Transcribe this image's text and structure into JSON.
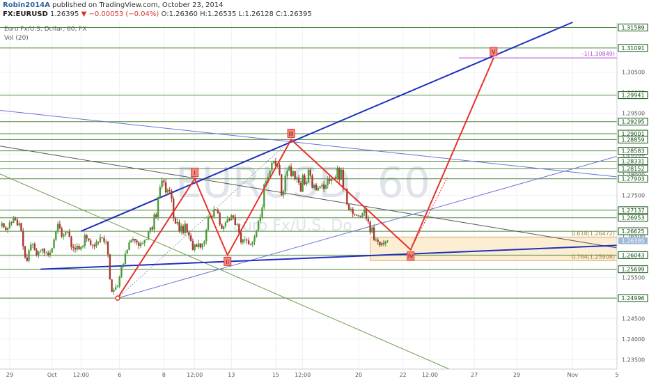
{
  "header": {
    "author": "Robin2014A",
    "published": "published on TradingView.com, October 23, 2014",
    "symbol": "FX:EURUSD",
    "last": "1.26395",
    "change": "−0.00053 (−0.04%)",
    "ohlc": "O:1.26360 H:1.26535 L:1.26128 C:1.26395",
    "pane_title": "Euro Fx/U.S. Dollar, 60, FX",
    "indicator": "Vol (20)"
  },
  "watermark": {
    "symbol": "EURUSD, 60",
    "name": "Euro Fx/U.S. Do"
  },
  "colors": {
    "red": "#e8312b",
    "blue": "#1f2fbf",
    "thin_blue": "#6b73d6",
    "black_line": "#555555",
    "green_line": "#6f9a4c",
    "level_line": "#4e8a3a",
    "fib_purple": "#b04ad0",
    "fib_label": "#9a7d3c",
    "box_fill": "#fbe8c4",
    "box_stroke": "#e7b864",
    "price_label": "#0c4d0c",
    "candle_up": "#4d9a3c",
    "candle_down": "#a53a32"
  },
  "chart_data": {
    "type": "candlestick",
    "ylim": [
      1.23267,
      1.31716
    ],
    "y_ticks": [
      "1.30500",
      "1.30000",
      "1.29500",
      "1.29000",
      "1.28500",
      "1.28000",
      "1.27500",
      "1.27000",
      "1.26500",
      "1.26000",
      "1.25500",
      "1.25000",
      "1.24500",
      "1.24000",
      "1.23500"
    ],
    "x_ticks": [
      {
        "label": "29",
        "t": 5
      },
      {
        "label": "Oct",
        "t": 27
      },
      {
        "label": "12:00",
        "t": 42
      },
      {
        "label": "6",
        "t": 62
      },
      {
        "label": "8",
        "t": 85
      },
      {
        "label": "12:00",
        "t": 101
      },
      {
        "label": "13",
        "t": 120
      },
      {
        "label": "15",
        "t": 143
      },
      {
        "label": "12:00",
        "t": 157
      },
      {
        "label": "20",
        "t": 186
      },
      {
        "label": "22",
        "t": 209
      },
      {
        "label": "12:00",
        "t": 223
      },
      {
        "label": "27",
        "t": 246
      },
      {
        "label": "29",
        "t": 268
      },
      {
        "label": "Nov",
        "t": 297
      },
      {
        "label": "5",
        "t": 320
      }
    ],
    "levels": [
      "1.31589",
      "1.31091",
      "1.29941",
      "1.29295",
      "1.29001",
      "1.28859",
      "1.28583",
      "1.28331",
      "1.28152",
      "1.27903",
      "1.27137",
      "1.26953",
      "1.26625",
      "1.26043",
      "1.25699",
      "1.24996"
    ],
    "last_price": "1.26395",
    "closes": [
      1.2675,
      1.2682,
      1.2672,
      1.2666,
      1.2671,
      1.2684,
      1.2683,
      1.2694,
      1.269,
      1.2677,
      1.2682,
      1.2662,
      1.2626,
      1.2599,
      1.259,
      1.2616,
      1.263,
      1.2632,
      1.2617,
      1.2604,
      1.2613,
      1.2615,
      1.262,
      1.261,
      1.261,
      1.2604,
      1.2611,
      1.2621,
      1.2642,
      1.2662,
      1.268,
      1.267,
      1.265,
      1.2654,
      1.266,
      1.2661,
      1.2649,
      1.2624,
      1.2622,
      1.2618,
      1.2627,
      1.2618,
      1.2624,
      1.2627,
      1.2653,
      1.2645,
      1.264,
      1.263,
      1.2629,
      1.2626,
      1.2637,
      1.2636,
      1.2648,
      1.2646,
      1.2637,
      1.2637,
      1.2606,
      1.2545,
      1.2515,
      1.252,
      1.2526,
      1.2528,
      1.2552,
      1.2576,
      1.2583,
      1.2608,
      1.2617,
      1.2635,
      1.264,
      1.2644,
      1.264,
      1.2635,
      1.2627,
      1.2633,
      1.2634,
      1.2641,
      1.2643,
      1.2662,
      1.2672,
      1.2667,
      1.2703,
      1.2697,
      1.2746,
      1.277,
      1.2786,
      1.2782,
      1.2757,
      1.2763,
      1.2761,
      1.2742,
      1.2694,
      1.2681,
      1.2685,
      1.2662,
      1.2675,
      1.2658,
      1.2681,
      1.266,
      1.2652,
      1.2639,
      1.2617,
      1.263,
      1.2624,
      1.2633,
      1.2623,
      1.2632,
      1.2638,
      1.2666,
      1.2695,
      1.27,
      1.2698,
      1.2716,
      1.2714,
      1.2707,
      1.2679,
      1.2668,
      1.2675,
      1.2684,
      1.2692,
      1.2689,
      1.2701,
      1.2697,
      1.2678,
      1.2679,
      1.2659,
      1.2635,
      1.2642,
      1.2642,
      1.264,
      1.2632,
      1.263,
      1.2637,
      1.2649,
      1.2664,
      1.2687,
      1.2697,
      1.2721,
      1.2777,
      1.2785,
      1.2795,
      1.281,
      1.2829,
      1.2834,
      1.2822,
      1.2824,
      1.2801,
      1.275,
      1.276,
      1.2797,
      1.281,
      1.282,
      1.2797,
      1.2809,
      1.2789,
      1.2793,
      1.278,
      1.2759,
      1.2799,
      1.2777,
      1.2782,
      1.2812,
      1.2798,
      1.2768,
      1.2776,
      1.2762,
      1.2768,
      1.2772,
      1.2776,
      1.2766,
      1.2775,
      1.279,
      1.2785,
      1.279,
      1.2793,
      1.279,
      1.2817,
      1.2788,
      1.2812,
      1.2766,
      1.2766,
      1.2728,
      1.2715,
      1.2717,
      1.2705,
      1.2703,
      1.2701,
      1.27,
      1.2698,
      1.2707,
      1.2716,
      1.2693,
      1.2686,
      1.266,
      1.2672,
      1.2641,
      1.2642,
      1.2637,
      1.2628,
      1.2634,
      1.2632,
      1.2638,
      1.264
    ],
    "overlays": {
      "zigzag_points": [
        [
          61,
          1.24996
        ],
        [
          101,
          1.27903
        ],
        [
          118,
          1.26043
        ],
        [
          151,
          1.28859
        ],
        [
          213,
          1.26174
        ],
        [
          256,
          1.30849
        ]
      ],
      "zigzag_labels": [
        "I",
        "II",
        "III",
        "IV",
        "V"
      ],
      "projection_points": [
        [
          151,
          1.28859
        ],
        [
          213,
          1.26174
        ],
        [
          232,
          1.27932
        ]
      ],
      "upper_channel": [
        [
          42,
          1.26625
        ],
        [
          297,
          1.31716
        ]
      ],
      "lower_channel": [
        [
          21,
          1.25699
        ],
        [
          320,
          1.2628
        ]
      ],
      "thin_blue_upper": [
        [
          0,
          1.2957
        ],
        [
          320,
          1.2795
        ]
      ],
      "thin_blue_lower": [
        [
          61,
          1.24996
        ],
        [
          320,
          1.2845
        ]
      ],
      "black_trend": [
        [
          0,
          1.287
        ],
        [
          320,
          1.2622
        ]
      ],
      "green_trend": [
        [
          0,
          1.2802
        ],
        [
          233,
          1.23267
        ]
      ],
      "dotted_line": [
        [
          61,
          1.24996
        ],
        [
          151,
          1.28859
        ]
      ],
      "box": {
        "t1": 192,
        "t2": 320,
        "p1": 1.26472,
        "p2": 1.25908
      },
      "fib_levels": [
        {
          "label": "0.618(1.26472)",
          "price": 1.26472
        },
        {
          "label": "0.764(1.25908)",
          "price": 1.25908
        },
        {
          "label": "-1(1.30849)",
          "price": 1.30849
        }
      ]
    }
  }
}
